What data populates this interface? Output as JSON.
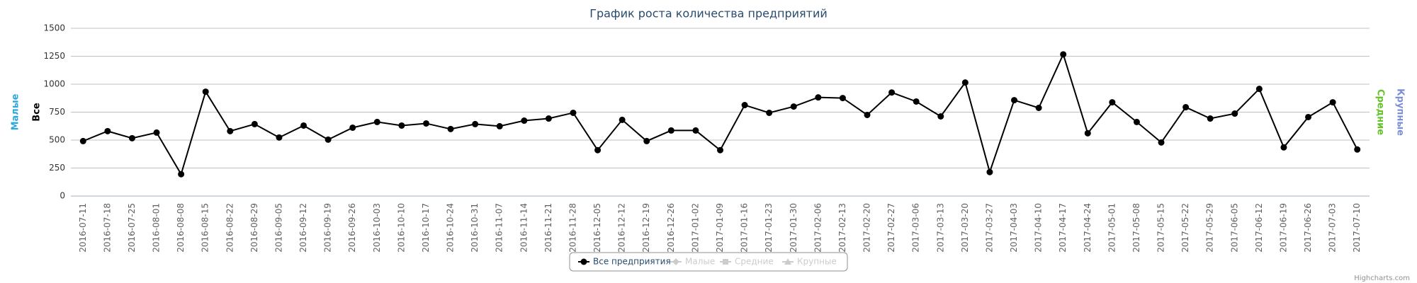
{
  "chart_data": {
    "type": "line",
    "title": "График роста количества предприятий",
    "categories": [
      "2016-07-11",
      "2016-07-18",
      "2016-07-25",
      "2016-08-01",
      "2016-08-08",
      "2016-08-15",
      "2016-08-22",
      "2016-08-29",
      "2016-09-05",
      "2016-09-12",
      "2016-09-19",
      "2016-09-26",
      "2016-10-03",
      "2016-10-10",
      "2016-10-17",
      "2016-10-24",
      "2016-10-31",
      "2016-11-07",
      "2016-11-14",
      "2016-11-21",
      "2016-11-28",
      "2016-12-05",
      "2016-12-12",
      "2016-12-19",
      "2016-12-26",
      "2017-01-02",
      "2017-01-09",
      "2017-01-16",
      "2017-01-23",
      "2017-01-30",
      "2017-02-06",
      "2017-02-13",
      "2017-02-20",
      "2017-02-27",
      "2017-03-06",
      "2017-03-13",
      "2017-03-20",
      "2017-03-27",
      "2017-04-03",
      "2017-04-10",
      "2017-04-17",
      "2017-04-24",
      "2017-05-01",
      "2017-05-08",
      "2017-05-15",
      "2017-05-22",
      "2017-05-29",
      "2017-06-05",
      "2017-06-12",
      "2017-06-19",
      "2017-06-26",
      "2017-07-03",
      "2017-07-10"
    ],
    "series": [
      {
        "name": "Все предприятия",
        "color": "#000000",
        "marker": "circle",
        "visible": true,
        "values": [
          491,
          580,
          517,
          567,
          195,
          933,
          580,
          643,
          523,
          630,
          504,
          611,
          662,
          630,
          649,
          599,
          643,
          624,
          674,
          693,
          744,
          410,
          681,
          491,
          586,
          586,
          410,
          813,
          744,
          800,
          882,
          876,
          725,
          926,
          845,
          712,
          1015,
          214,
          857,
          788,
          1267,
          561,
          838,
          662,
          479,
          794,
          693,
          737,
          958,
          435,
          706,
          838,
          416
        ]
      },
      {
        "name": "Малые",
        "color": "#2aa8dc",
        "marker": "diamond",
        "visible": false
      },
      {
        "name": "Средние",
        "color": "#66c22a",
        "marker": "square",
        "visible": false
      },
      {
        "name": "Крупные",
        "color": "#7b8fd6",
        "marker": "triangle",
        "visible": false
      }
    ],
    "axis_titles": [
      {
        "text": "Малые",
        "color": "#2aa8dc",
        "side": "left"
      },
      {
        "text": "Все",
        "color": "#000000",
        "side": "left"
      },
      {
        "text": "Средние",
        "color": "#66c22a",
        "side": "right"
      },
      {
        "text": "Крупные",
        "color": "#7b8fd6",
        "side": "right"
      }
    ],
    "ylim": [
      0,
      1500
    ],
    "yticks": [
      0,
      250,
      500,
      750,
      1000,
      1250,
      1500
    ],
    "grid": true,
    "legend": "bottom",
    "credits": "Highcharts.com"
  }
}
